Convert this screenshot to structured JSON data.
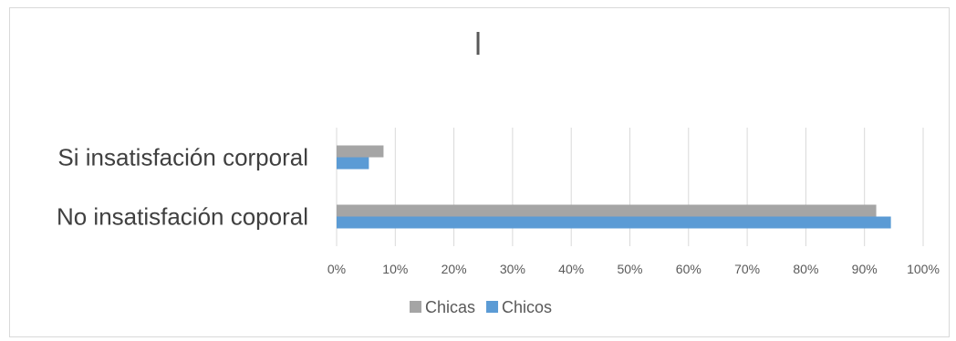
{
  "chart_data": {
    "type": "bar",
    "orientation": "horizontal",
    "title": "l",
    "categories": [
      "Si insatisfación corporal",
      "No insatisfación coporal"
    ],
    "series": [
      {
        "name": "Chicas",
        "color": "#a5a5a5",
        "values": [
          0.08,
          0.92
        ]
      },
      {
        "name": "Chicos",
        "color": "#5b9bd5",
        "values": [
          0.055,
          0.945
        ]
      }
    ],
    "xlim": [
      0,
      1
    ],
    "x_ticks": [
      "0%",
      "10%",
      "20%",
      "30%",
      "40%",
      "50%",
      "60%",
      "70%",
      "80%",
      "90%",
      "100%"
    ],
    "grid": true,
    "legend_position": "bottom"
  }
}
